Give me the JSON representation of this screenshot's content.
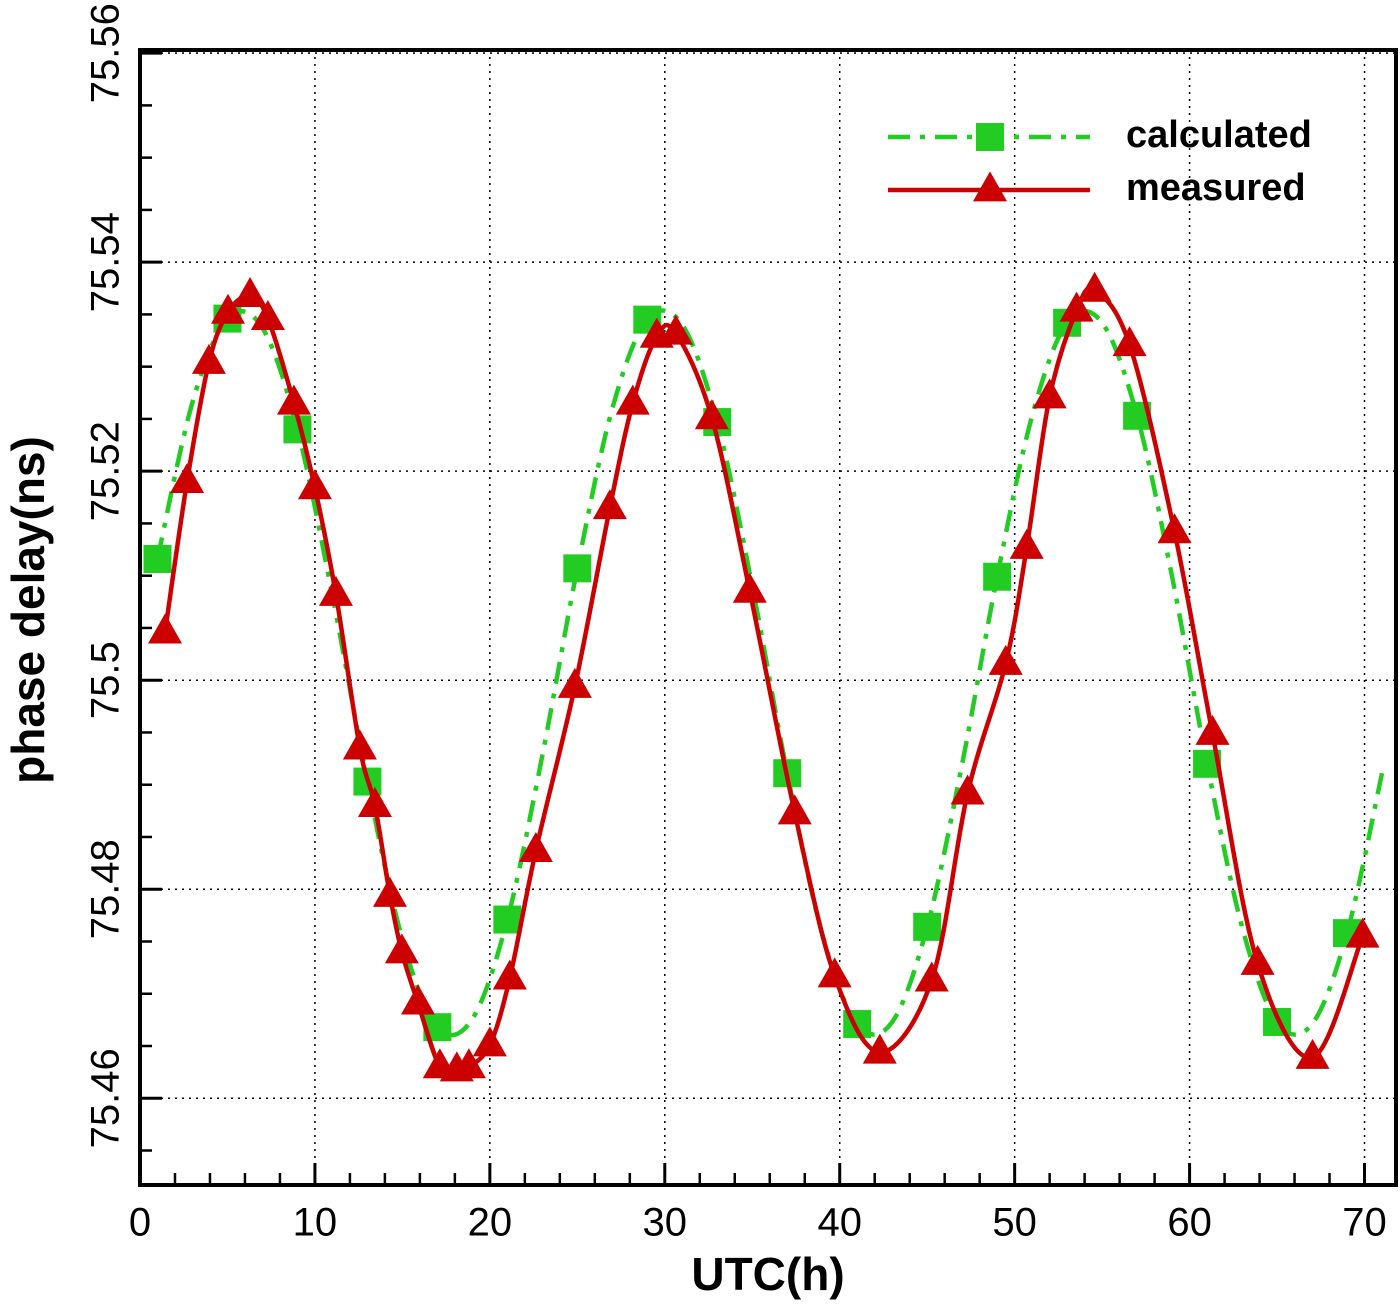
{
  "chart_data": {
    "type": "line",
    "x_label": "UTC(h)",
    "y_label": "phase delay(ns)",
    "xlim": [
      0,
      71.8
    ],
    "ylim": [
      75.4517,
      75.5603
    ],
    "xticks": [
      0,
      10,
      20,
      30,
      40,
      50,
      60,
      70
    ],
    "yticks": [
      75.46,
      75.48,
      75.5,
      75.52,
      75.54,
      75.56
    ],
    "xminor_ticks": [
      2,
      4,
      6,
      8,
      12,
      14,
      16,
      18,
      22,
      24,
      26,
      28,
      32,
      34,
      36,
      38,
      42,
      44,
      46,
      48,
      52,
      54,
      56,
      58,
      62,
      64,
      66,
      68
    ],
    "yminor_ticks": [
      75.455,
      75.465,
      75.47,
      75.475,
      75.485,
      75.49,
      75.495,
      75.505,
      75.51,
      75.515,
      75.525,
      75.53,
      75.535,
      75.545,
      75.55,
      75.555
    ],
    "grid": true,
    "legend": "upper right",
    "series": [
      {
        "name": "calculated",
        "color": "#22cc22",
        "line_style": "dashdot",
        "marker": "square",
        "markevery": 2,
        "x": [
          1,
          3,
          5,
          7,
          9,
          11,
          13,
          15,
          17,
          19,
          21,
          23,
          25,
          27,
          29,
          31,
          33,
          35,
          37,
          39,
          41,
          43,
          45,
          47,
          49,
          51,
          53,
          55,
          57,
          59,
          61,
          63,
          65,
          67,
          69,
          71
        ],
        "values": [
          75.5116,
          75.5266,
          75.5346,
          75.5337,
          75.524,
          75.5081,
          75.4903,
          75.4752,
          75.4668,
          75.4676,
          75.4771,
          75.4928,
          75.5107,
          75.526,
          75.5345,
          75.534,
          75.5247,
          75.509,
          75.4911,
          75.4757,
          75.4671,
          75.4673,
          75.4764,
          75.492,
          75.5099,
          75.5253,
          75.5342,
          75.5342,
          75.5253,
          75.5099,
          75.492,
          75.4764,
          75.4673,
          75.4671,
          75.4758,
          75.4911
        ]
      },
      {
        "name": "measured",
        "color": "#cc0000",
        "line_style": "solid",
        "marker": "triangle",
        "markevery": 1,
        "x": [
          1.43,
          2.69,
          3.94,
          5.03,
          6.29,
          7.31,
          8.8,
          10.0,
          11.2,
          12.57,
          13.43,
          14.29,
          14.97,
          15.89,
          17.14,
          18.11,
          18.8,
          20.0,
          21.14,
          22.63,
          24.86,
          26.86,
          28.17,
          29.54,
          30.63,
          32.69,
          34.86,
          37.43,
          39.71,
          42.29,
          45.26,
          47.31,
          49.49,
          50.69,
          52.0,
          53.54,
          54.57,
          56.57,
          59.14,
          61.31,
          63.89,
          67.03,
          69.89
        ],
        "values": [
          75.5046,
          75.519,
          75.5304,
          75.5352,
          75.5368,
          75.5346,
          75.5265,
          75.5184,
          75.5082,
          75.4935,
          75.488,
          75.4794,
          75.474,
          75.4691,
          75.463,
          75.4627,
          75.463,
          75.4651,
          75.4715,
          75.4837,
          75.4994,
          75.5165,
          75.5265,
          75.5329,
          75.5332,
          75.5251,
          75.5085,
          75.4873,
          75.4717,
          75.4644,
          75.4713,
          75.4892,
          75.5016,
          75.5127,
          75.5271,
          75.5354,
          75.5373,
          75.5321,
          75.5142,
          75.4949,
          75.4729,
          75.4639,
          75.4755
        ]
      }
    ]
  }
}
